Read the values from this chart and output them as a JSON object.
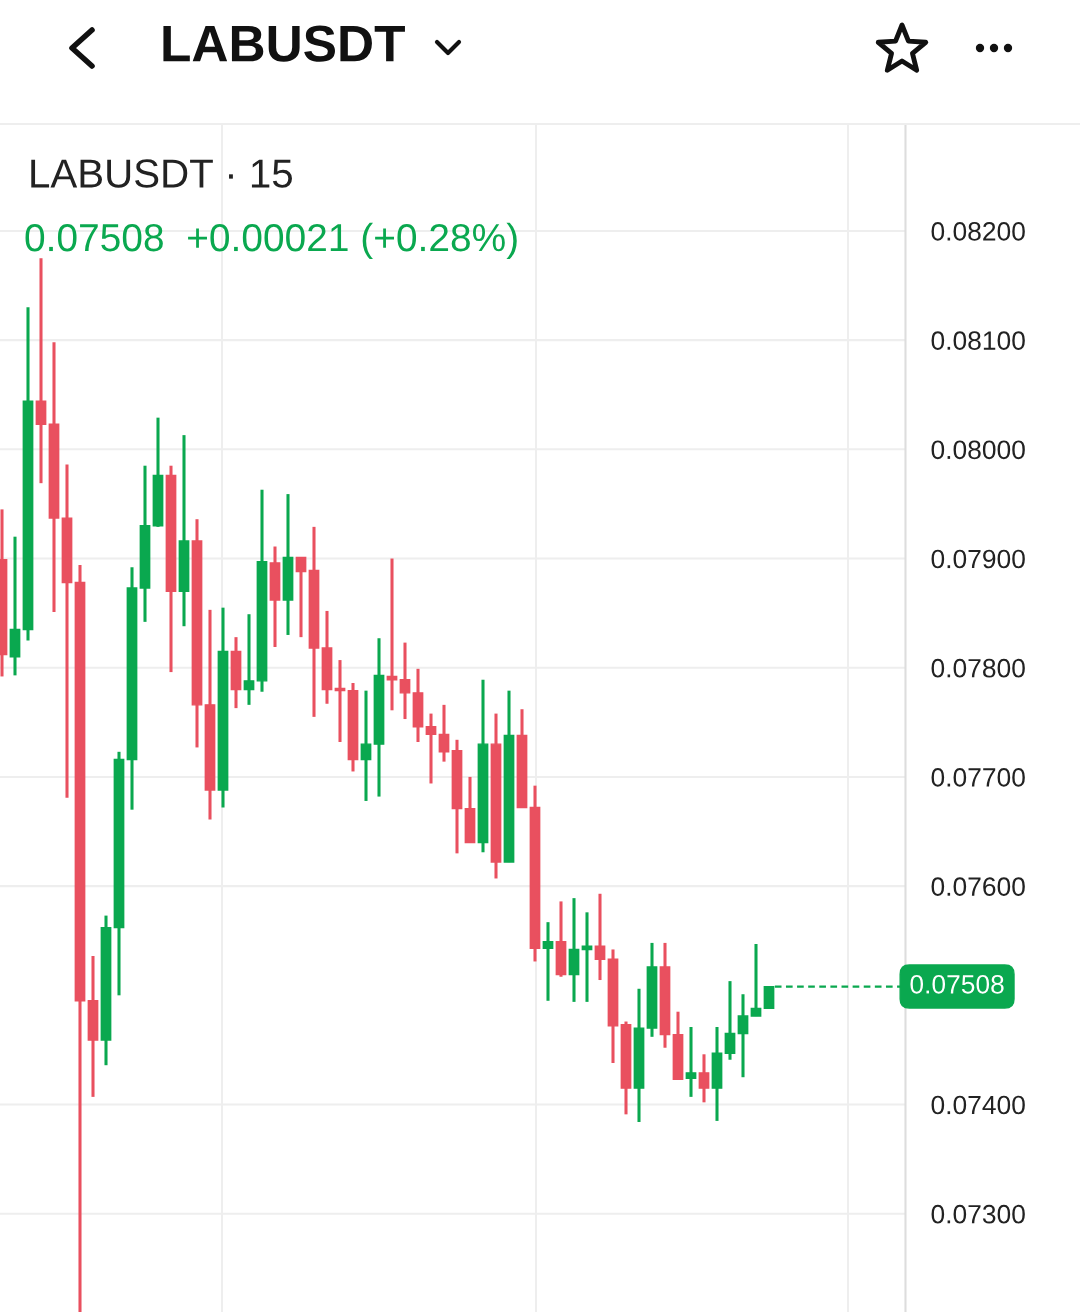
{
  "chart_data": {
    "type": "candlestick",
    "title": "LABUSDT",
    "subtitle": "LABUSDT · 15",
    "annotations": [
      "0.07508  +0.00021 (+0.28%)"
    ],
    "categories": [
      null,
      null,
      null,
      null,
      null,
      null,
      null,
      null,
      null,
      null,
      null,
      null,
      null,
      null,
      null,
      null,
      null,
      null,
      null,
      null,
      null,
      null,
      null,
      null,
      null,
      null,
      null,
      null,
      null,
      null,
      null,
      null,
      null,
      null,
      null,
      null,
      null,
      null,
      null,
      null,
      null,
      null,
      null,
      null,
      null,
      null,
      null,
      null,
      null,
      null,
      null,
      null,
      null,
      null,
      null,
      null,
      null,
      null,
      null,
      null,
      null,
      null,
      null,
      null,
      null,
      null,
      null,
      null,
      null,
      null
    ],
    "ohlc": [
      [
        0.07899,
        0.07945,
        0.07792,
        0.07812
      ],
      [
        0.0781,
        0.0792,
        0.07793,
        0.07835
      ],
      [
        0.07835,
        0.0813,
        0.07825,
        0.08044
      ],
      [
        0.08044,
        0.08175,
        0.07969,
        0.08023
      ],
      [
        0.08023,
        0.08098,
        0.07851,
        0.07937
      ],
      [
        0.07937,
        0.07986,
        0.07681,
        0.07878
      ],
      [
        0.07878,
        0.07894,
        0.0721,
        0.07495
      ],
      [
        0.07495,
        0.07536,
        0.07407,
        0.07459
      ],
      [
        0.07459,
        0.07573,
        0.07436,
        0.07562
      ],
      [
        0.07562,
        0.07723,
        0.075,
        0.07716
      ],
      [
        0.07716,
        0.07892,
        0.0767,
        0.07873
      ],
      [
        0.07873,
        0.07985,
        0.07842,
        0.0793
      ],
      [
        0.0793,
        0.08029,
        0.07929,
        0.07976
      ],
      [
        0.07976,
        0.07985,
        0.07796,
        0.0787
      ],
      [
        0.0787,
        0.08013,
        0.07838,
        0.07916
      ],
      [
        0.07916,
        0.07936,
        0.07727,
        0.07766
      ],
      [
        0.07766,
        0.07853,
        0.07661,
        0.07688
      ],
      [
        0.07688,
        0.07855,
        0.07672,
        0.07815
      ],
      [
        0.07815,
        0.07828,
        0.07763,
        0.0778
      ],
      [
        0.0778,
        0.07849,
        0.07766,
        0.07788
      ],
      [
        0.07788,
        0.07963,
        0.07778,
        0.07897
      ],
      [
        0.07896,
        0.07911,
        0.07819,
        0.07862
      ],
      [
        0.07862,
        0.07959,
        0.0783,
        0.07901
      ],
      [
        0.07901,
        0.07901,
        0.07828,
        0.07888
      ],
      [
        0.07889,
        0.07929,
        0.07755,
        0.07818
      ],
      [
        0.07818,
        0.07852,
        0.07767,
        0.0778
      ],
      [
        0.07781,
        0.07807,
        0.07732,
        0.07779
      ],
      [
        0.07779,
        0.07786,
        0.07705,
        0.07716
      ],
      [
        0.07716,
        0.07779,
        0.07678,
        0.0773
      ],
      [
        0.0773,
        0.07827,
        0.07682,
        0.07793
      ],
      [
        0.07792,
        0.079,
        0.07761,
        0.07789
      ],
      [
        0.07789,
        0.07823,
        0.07753,
        0.07777
      ],
      [
        0.07777,
        0.07799,
        0.07732,
        0.07746
      ],
      [
        0.07746,
        0.07758,
        0.07694,
        0.07739
      ],
      [
        0.07739,
        0.07766,
        0.07714,
        0.07723
      ],
      [
        0.07724,
        0.07734,
        0.0763,
        0.07671
      ],
      [
        0.07671,
        0.077,
        0.0764,
        0.0764
      ],
      [
        0.0764,
        0.07789,
        0.07631,
        0.0773
      ],
      [
        0.0773,
        0.07758,
        0.07607,
        0.07622
      ],
      [
        0.07622,
        0.07779,
        0.07622,
        0.07738
      ],
      [
        0.07738,
        0.07762,
        0.07672,
        0.07672
      ],
      [
        0.07672,
        0.07692,
        0.07531,
        0.07543
      ],
      [
        0.07543,
        0.07567,
        0.07495,
        0.07549
      ],
      [
        0.07549,
        0.07586,
        0.07517,
        0.07519
      ],
      [
        0.07519,
        0.07589,
        0.07494,
        0.07542
      ],
      [
        0.07542,
        0.07576,
        0.07494,
        0.07545
      ],
      [
        0.07545,
        0.07593,
        0.07514,
        0.07533
      ],
      [
        0.07533,
        0.07542,
        0.07438,
        0.07472
      ],
      [
        0.07473,
        0.07476,
        0.07391,
        0.07415
      ],
      [
        0.07415,
        0.07506,
        0.07384,
        0.0747
      ],
      [
        0.0747,
        0.07548,
        0.07462,
        0.07526
      ],
      [
        0.07526,
        0.07548,
        0.07452,
        0.07464
      ],
      [
        0.07464,
        0.07485,
        0.07423,
        0.07423
      ],
      [
        0.07424,
        0.07471,
        0.07407,
        0.07429
      ],
      [
        0.07429,
        0.07446,
        0.07402,
        0.07415
      ],
      [
        0.07415,
        0.07471,
        0.07385,
        0.07447
      ],
      [
        0.07447,
        0.07513,
        0.07441,
        0.07465
      ],
      [
        0.07465,
        0.07501,
        0.07425,
        0.07481
      ],
      [
        0.07481,
        0.07547,
        0.07481,
        0.07488
      ],
      [
        0.07488,
        0.07508,
        0.07488,
        0.07508
      ],
      null,
      null,
      null,
      null,
      null,
      null,
      null,
      null,
      null,
      null
    ],
    "ylim": [
      0.0721,
      0.08297
    ],
    "yticks": [
      {
        "value": 0.073,
        "label": "0.07300"
      },
      {
        "value": 0.074,
        "label": "0.07400"
      },
      {
        "value": 0.076,
        "label": "0.07600"
      },
      {
        "value": 0.077,
        "label": "0.07700"
      },
      {
        "value": 0.078,
        "label": "0.07800"
      },
      {
        "value": 0.079,
        "label": "0.07900"
      },
      {
        "value": 0.08,
        "label": "0.08000"
      },
      {
        "value": 0.081,
        "label": "0.08100"
      },
      {
        "value": 0.082,
        "label": "0.08200"
      }
    ],
    "ref_lines": [
      {
        "axis": "y",
        "value": 0.07508,
        "label": "0.07508",
        "color": "#0aa84f",
        "line_style": "dashed"
      }
    ],
    "grid": true,
    "tick_labels": "y"
  }
}
